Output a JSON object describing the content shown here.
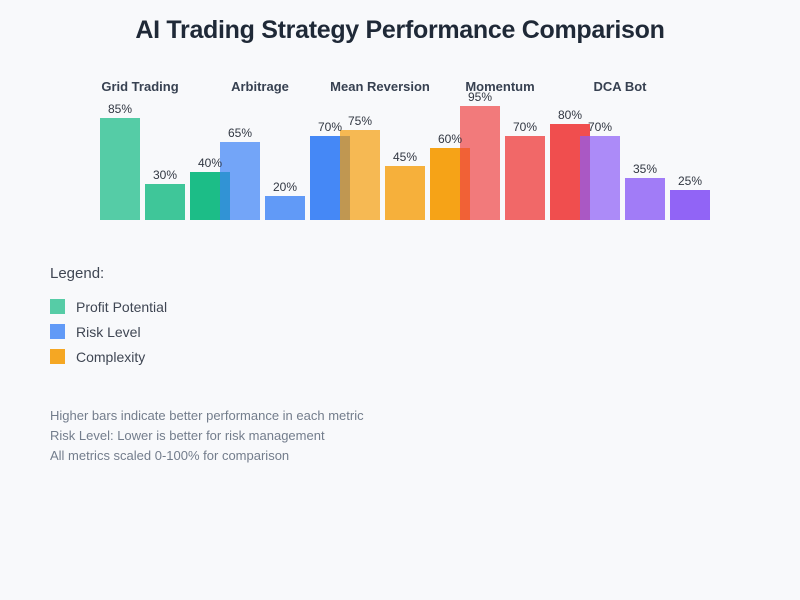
{
  "page": {
    "background": "#f8f9fb"
  },
  "chart_data": {
    "type": "bar",
    "title": "AI Trading Strategy Performance Comparison",
    "categories": [
      "Grid Trading",
      "Arbitrage",
      "Mean Reversion",
      "Momentum",
      "DCA Bot"
    ],
    "series": [
      {
        "name": "Profit Potential",
        "values": [
          85,
          65,
          75,
          95,
          70
        ]
      },
      {
        "name": "Risk Level",
        "values": [
          30,
          20,
          45,
          70,
          35
        ]
      },
      {
        "name": "Complexity",
        "values": [
          40,
          70,
          60,
          80,
          25
        ]
      }
    ],
    "value_suffix": "%",
    "ylim": [
      0,
      100
    ],
    "grid": false,
    "axes_visible": false,
    "bar_value_labels": true,
    "category_colors": [
      "#10b981",
      "#3b82f6",
      "#f59e0b",
      "#ef4444",
      "#8b5cf6"
    ],
    "series_alphas": [
      0.7,
      0.8,
      0.95
    ],
    "legend_position": "below-left"
  },
  "legend": {
    "heading": "Legend:",
    "items": [
      {
        "label": "Profit Potential",
        "swatch": "#56cca6"
      },
      {
        "label": "Risk Level",
        "swatch": "#619af7"
      },
      {
        "label": "Complexity",
        "swatch": "#f5a723"
      }
    ]
  },
  "notes": [
    "Higher bars indicate better performance in each metric",
    "Risk Level: Lower is better for risk management",
    "All metrics scaled 0-100% for comparison"
  ],
  "colors": {
    "title_text": "#1f2937",
    "category_label_text": "#374151",
    "value_label_text": "#313742",
    "legend_text": "#3f4653",
    "notes_text": "#737d8c"
  }
}
